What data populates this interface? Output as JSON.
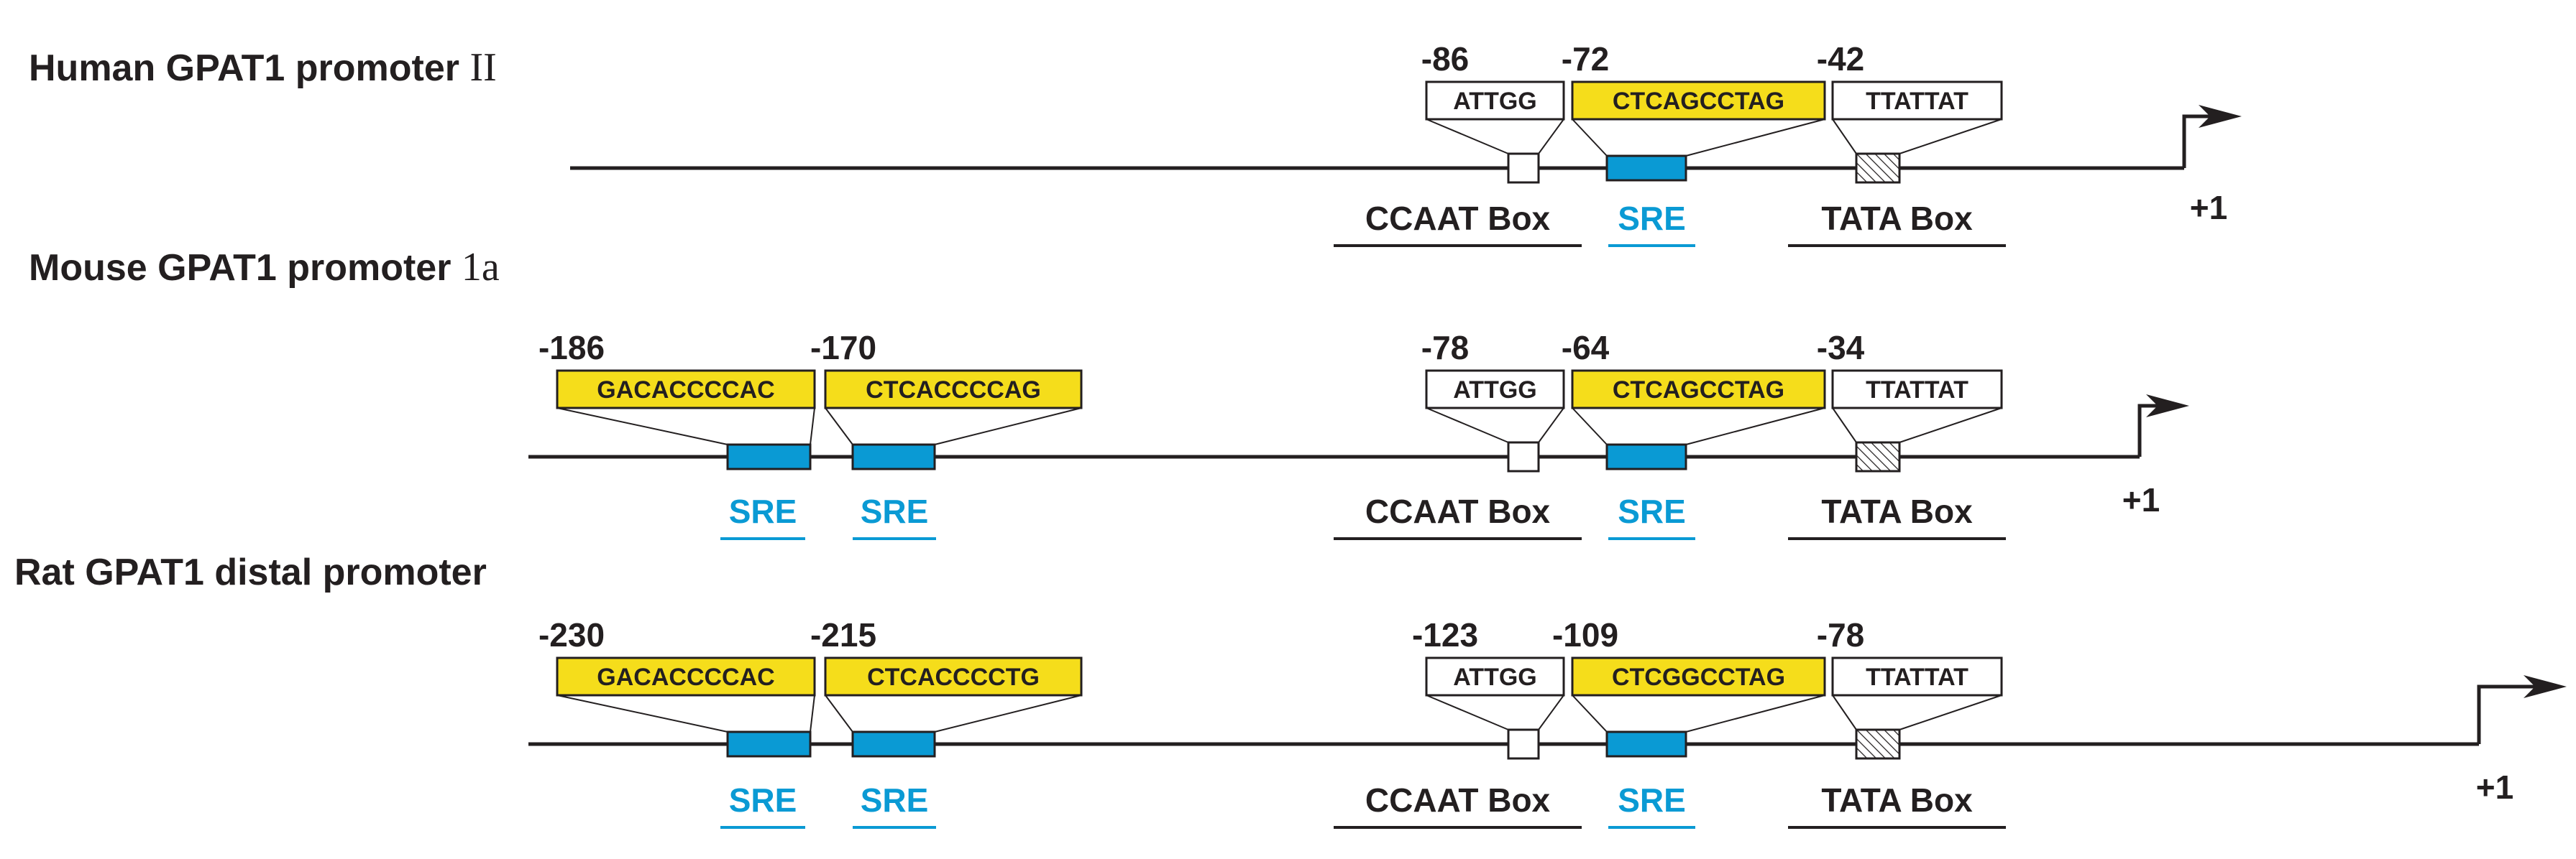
{
  "colors": {
    "line": "#231f20",
    "sre_box": "#0a9ad4",
    "sre_label": "#0a9ad4",
    "highlight": "#f5dd1b",
    "plain_box": "#ffffff"
  },
  "box_labels": {
    "ccaat": "CCAAT Box",
    "sre": "SRE",
    "tata": "TATA Box"
  },
  "tss_label": "+1",
  "promoters": [
    {
      "title": "Human GPAT1 promoter ",
      "title_suffix": "II",
      "left_pair": null,
      "right_positions": [
        "-86",
        "-72",
        "-42"
      ],
      "right_seqs": [
        "ATTGG",
        "CTCAGCCTAG",
        "TTATTAT"
      ]
    },
    {
      "title": "Mouse GPAT1 promoter ",
      "title_suffix": "1a",
      "left_pair": {
        "positions": [
          "-186",
          "-170"
        ],
        "seqs": [
          "GACACCCCAC",
          "CTCACCCCAG"
        ]
      },
      "right_positions": [
        "-78",
        "-64",
        "-34"
      ],
      "right_seqs": [
        "ATTGG",
        "CTCAGCCTAG",
        "TTATTAT"
      ]
    },
    {
      "title": "Rat GPAT1 distal promoter",
      "title_suffix": "",
      "left_pair": {
        "positions": [
          "-230",
          "-215"
        ],
        "seqs": [
          "GACACCCCAC",
          "CTCACCCCTG"
        ]
      },
      "right_positions": [
        "-123",
        "-109",
        "-78"
      ],
      "right_seqs": [
        "ATTGG",
        "CTCGGCCTAG",
        "TTATTAT"
      ]
    }
  ]
}
